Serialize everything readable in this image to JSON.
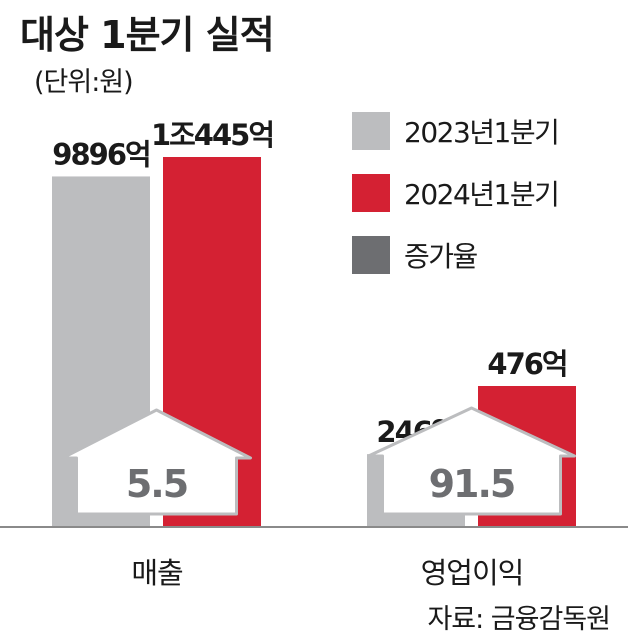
{
  "title": "대상 1분기 실적",
  "unit_label": "(단위:원)",
  "source": "자료: 금융감독원",
  "colors": {
    "series_2023": "#bcbdbf",
    "series_2024": "#d42133",
    "growth": "#6d6e71",
    "arrow_fill": "#ffffff",
    "arrow_stroke": "#bcbdbf"
  },
  "legend": [
    {
      "label": "2023년1분기",
      "color": "#bcbdbf"
    },
    {
      "label": "2024년1분기",
      "color": "#d42133"
    },
    {
      "label": "증가율",
      "color": "#6d6e71"
    }
  ],
  "chart_data": {
    "type": "bar",
    "categories": [
      "매출",
      "영업이익"
    ],
    "series": [
      {
        "name": "2023년1분기",
        "values": [
          9896,
          246
        ],
        "labels": [
          "9896억",
          "246억"
        ]
      },
      {
        "name": "2024년1분기",
        "values": [
          10445,
          476
        ],
        "labels": [
          "1조445억",
          "476억"
        ]
      }
    ],
    "growth_rates": [
      5.5,
      91.5
    ],
    "growth_labels": [
      "5.5",
      "91.5"
    ]
  }
}
